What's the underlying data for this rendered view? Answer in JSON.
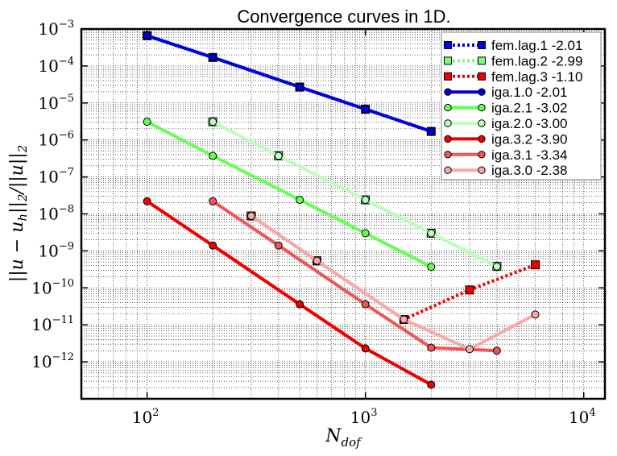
{
  "chart_data": {
    "type": "line",
    "title": "Convergence curves in 1D.",
    "xlabel": "N_dof",
    "ylabel": "||u - u_h||_2/||u||_2",
    "xscale": "log",
    "yscale": "log",
    "xlim": [
      50,
      12500
    ],
    "ylim": [
      1e-13,
      0.001
    ],
    "grid": true,
    "legend_position": "top-right",
    "x_ticks": [
      {
        "base": "10",
        "exp": "2"
      },
      {
        "base": "10",
        "exp": "3"
      },
      {
        "base": "10",
        "exp": "4"
      }
    ],
    "y_ticks": [
      {
        "base": "10",
        "exp": "−3"
      },
      {
        "base": "10",
        "exp": "−4"
      },
      {
        "base": "10",
        "exp": "−5"
      },
      {
        "base": "10",
        "exp": "−6"
      },
      {
        "base": "10",
        "exp": "−7"
      },
      {
        "base": "10",
        "exp": "−8"
      },
      {
        "base": "10",
        "exp": "−9"
      },
      {
        "base": "10",
        "exp": "−10"
      },
      {
        "base": "10",
        "exp": "−11"
      },
      {
        "base": "10",
        "exp": "−12"
      }
    ],
    "series": [
      {
        "name": "fem.lag.1 -2.01",
        "color": "#0000ee",
        "style": "dotted",
        "marker": "square",
        "x": [
          100,
          200,
          500,
          1000,
          2000
        ],
        "y": [
          0.00066,
          0.00017,
          2.7e-05,
          6.8e-06,
          1.7e-06
        ]
      },
      {
        "name": "fem.lag.2 -2.99",
        "color": "#7cfc7c",
        "style": "dotted",
        "marker": "square",
        "x": [
          200,
          400,
          1000,
          2000,
          4000
        ],
        "y": [
          3.1e-06,
          3.7e-07,
          2.4e-08,
          3e-09,
          3.8e-10
        ]
      },
      {
        "name": "fem.lag.3 -1.10",
        "color": "#ee0000",
        "style": "dotted",
        "marker": "square",
        "x": [
          300,
          600,
          1500,
          3000,
          6000
        ],
        "y": [
          8.8e-09,
          5.4e-10,
          1.4e-11,
          8.8e-11,
          4.2e-10
        ]
      },
      {
        "name": "iga.1.0 -2.01",
        "color": "#0000dd",
        "style": "solid",
        "marker": "circle",
        "x": [
          100,
          200,
          500,
          1000,
          2000
        ],
        "y": [
          0.00066,
          0.00017,
          2.7e-05,
          6.8e-06,
          1.7e-06
        ]
      },
      {
        "name": "iga.2.1 -3.02",
        "color": "#66ff55",
        "style": "solid",
        "marker": "circle",
        "x": [
          100,
          200,
          500,
          1000,
          2000
        ],
        "y": [
          3.1e-06,
          3.7e-07,
          2.4e-08,
          3e-09,
          3.7e-10
        ]
      },
      {
        "name": "iga.2.0 -3.00",
        "color": "#bbffbb",
        "style": "solid",
        "marker": "circle",
        "x": [
          200,
          400,
          1000,
          2000,
          4000
        ],
        "y": [
          3.1e-06,
          3.7e-07,
          2.4e-08,
          3e-09,
          3.8e-10
        ]
      },
      {
        "name": "iga.3.2 -3.90",
        "color": "#ee0000",
        "style": "solid",
        "marker": "circle",
        "x": [
          100,
          200,
          500,
          1000,
          2000
        ],
        "y": [
          2.2e-08,
          1.4e-09,
          3.6e-11,
          2.3e-12,
          2.4e-13
        ]
      },
      {
        "name": "iga.3.1 -3.34",
        "color": "#f05555",
        "style": "solid",
        "marker": "circle",
        "x": [
          200,
          400,
          1000,
          2000,
          4000
        ],
        "y": [
          2.2e-08,
          1.4e-09,
          3.6e-11,
          2.4e-12,
          2e-12
        ]
      },
      {
        "name": "iga.3.0 -2.38",
        "color": "#f7a9a9",
        "style": "solid",
        "marker": "circle",
        "x": [
          300,
          600,
          1500,
          3000,
          6000
        ],
        "y": [
          8.8e-09,
          5.4e-10,
          1.4e-11,
          2.2e-12,
          1.9e-11
        ]
      }
    ]
  }
}
